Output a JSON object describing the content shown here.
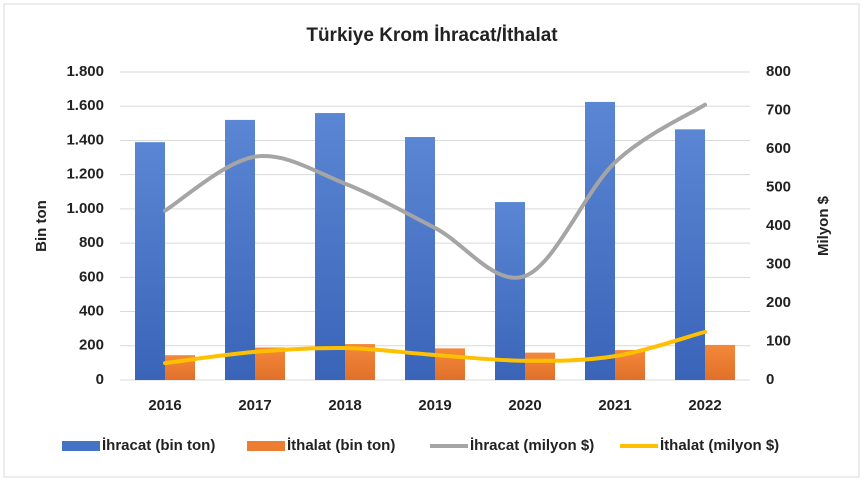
{
  "chart_data": {
    "type": "bar-line",
    "title": "Türkiye Krom İhracat/İthalat",
    "y_label": "Bin ton",
    "y2_label": "Milyon $",
    "categories": [
      "2016",
      "2017",
      "2018",
      "2019",
      "2020",
      "2021",
      "2022"
    ],
    "series": [
      {
        "name": "İhracat (bin ton)",
        "type": "bar",
        "color": "#4472c4",
        "values": [
          1390,
          1520,
          1560,
          1420,
          1040,
          1625,
          1465
        ]
      },
      {
        "name": "İthalat (bin ton)",
        "type": "bar",
        "color": "#ed7d31",
        "values": [
          145,
          190,
          210,
          185,
          160,
          175,
          205
        ]
      },
      {
        "name": "İhracat (milyon $)",
        "type": "line",
        "axis": "y2",
        "color": "#a5a5a5",
        "values": [
          440,
          580,
          510,
          395,
          270,
          565,
          715
        ]
      },
      {
        "name": "İthalat (milyon $)",
        "type": "line",
        "axis": "y2",
        "color": "#ffc000",
        "values": [
          44,
          73,
          83,
          65,
          50,
          62,
          125
        ]
      }
    ],
    "ylim": [
      0,
      1800
    ],
    "yticks": [
      0,
      200,
      400,
      600,
      800,
      {
        "value": 1000,
        "label": "1.000"
      },
      {
        "value": 1200,
        "label": "1.200"
      },
      {
        "value": 1400,
        "label": "1.400"
      },
      {
        "value": 1600,
        "label": "1.600"
      },
      {
        "value": 1800,
        "label": "1.800"
      }
    ],
    "y2lim": [
      0,
      800
    ],
    "y2ticks": [
      0,
      100,
      200,
      300,
      400,
      500,
      600,
      700,
      800
    ],
    "grid": true,
    "legend": "bottom"
  }
}
